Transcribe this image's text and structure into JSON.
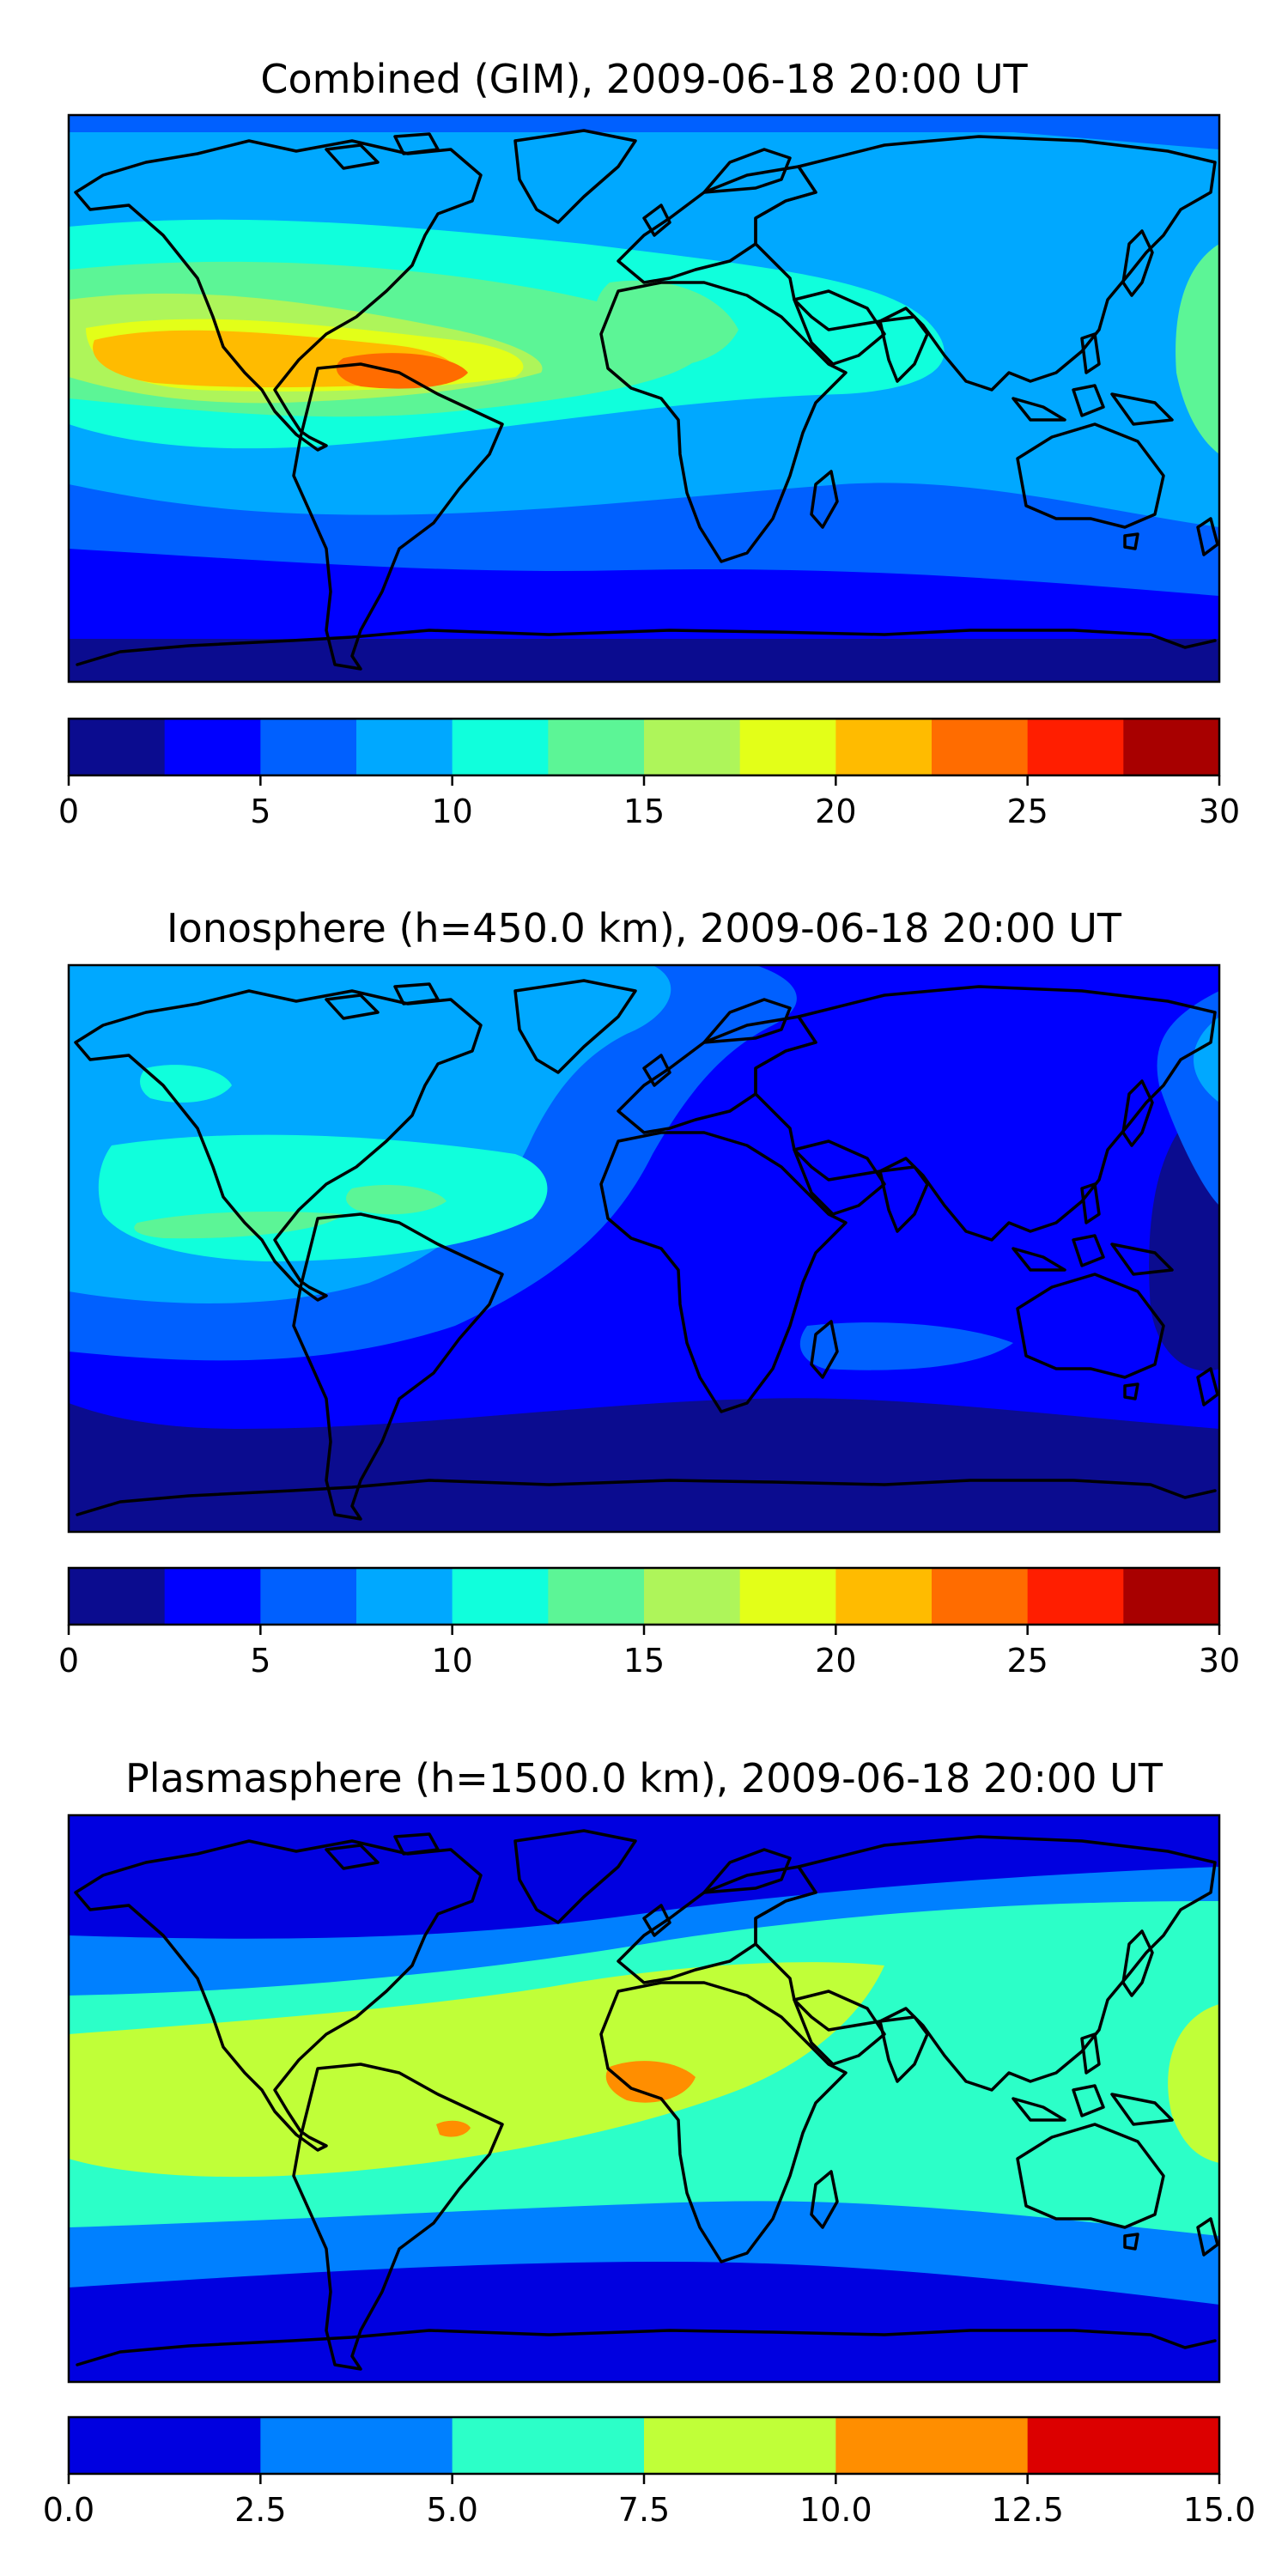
{
  "panels": [
    {
      "title": "Combined (GIM), 2009-06-18 20:00 UT",
      "colorbar": {
        "min": 0,
        "max": 30,
        "ticks": [
          "0",
          "5",
          "10",
          "15",
          "20",
          "25",
          "30"
        ],
        "levels": [
          "#0b0c8f",
          "#0000ff",
          "#0060ff",
          "#00a8ff",
          "#10ffdc",
          "#5cf596",
          "#aef55a",
          "#e3ff18",
          "#ffbb00",
          "#ff6c00",
          "#ff1e00",
          "#a80000"
        ]
      }
    },
    {
      "title": "Ionosphere  (h=450.0 km), 2009-06-18 20:00 UT",
      "colorbar": {
        "min": 0,
        "max": 30,
        "ticks": [
          "0",
          "5",
          "10",
          "15",
          "20",
          "25",
          "30"
        ],
        "levels": [
          "#0b0c8f",
          "#0000ff",
          "#0060ff",
          "#00a8ff",
          "#10ffdc",
          "#5cf596",
          "#aef55a",
          "#e3ff18",
          "#ffbb00",
          "#ff6c00",
          "#ff1e00",
          "#a80000"
        ]
      }
    },
    {
      "title": "Plasmasphere (h=1500.0 km), 2009-06-18 20:00 UT",
      "colorbar": {
        "min": 0,
        "max": 15,
        "ticks": [
          "0.0",
          "2.5",
          "5.0",
          "7.5",
          "10.0",
          "12.5",
          "15.0"
        ],
        "levels": [
          "#0000e0",
          "#0080ff",
          "#2cffc8",
          "#c0ff38",
          "#ff8e00",
          "#dc0000"
        ]
      }
    }
  ]
}
